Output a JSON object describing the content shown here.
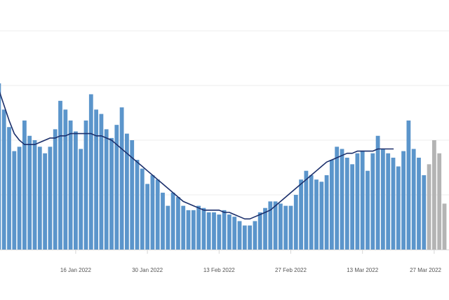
{
  "chart_data": {
    "type": "bar",
    "x_tick_labels": [
      "16 Jan 2022",
      "30 Jan 2022",
      "13 Feb 2022",
      "27 Feb 2022",
      "13 Mar 2022",
      "27 Mar 2022"
    ],
    "x_tick_positions": [
      15,
      29,
      43,
      57,
      71,
      85
    ],
    "ylim": [
      0,
      100
    ],
    "grid": true,
    "values": [
      76,
      64,
      56,
      45,
      47,
      59,
      52,
      50,
      47,
      44,
      47,
      55,
      68,
      64,
      59,
      54,
      46,
      59,
      71,
      64,
      62,
      55,
      51,
      57,
      65,
      53,
      50,
      41,
      37,
      30,
      34,
      32,
      26,
      20,
      26,
      24,
      20,
      18,
      18,
      20,
      19,
      17,
      17,
      16,
      18,
      16,
      15,
      13,
      11,
      11,
      13,
      17,
      19,
      22,
      22,
      21,
      20,
      20,
      25,
      32,
      36,
      34,
      32,
      31,
      34,
      41,
      47,
      46,
      42,
      39,
      44,
      45,
      36,
      44,
      52,
      46,
      44,
      42,
      38,
      45,
      59,
      46,
      42,
      34
    ],
    "rolling_average": [
      73,
      66,
      59,
      53,
      50,
      48,
      48,
      48,
      49,
      50,
      51,
      51,
      52,
      52,
      53,
      53,
      53,
      53,
      53,
      52,
      52,
      51,
      50,
      48,
      46,
      44,
      42,
      40,
      38,
      36,
      34,
      32,
      30,
      28,
      26,
      24,
      22,
      21,
      20,
      19,
      18,
      18,
      18,
      18,
      17,
      17,
      16,
      15,
      14,
      14,
      15,
      16,
      17,
      18,
      20,
      22,
      24,
      26,
      28,
      30,
      32,
      34,
      36,
      38,
      40,
      41,
      42,
      43,
      44,
      44,
      45,
      45,
      45,
      45,
      46,
      46,
      46,
      46
    ],
    "incomplete_values": [
      39,
      50,
      44,
      21
    ],
    "colors": {
      "bar": "#5b95cb",
      "incomplete_bar": "#b4b4b4",
      "line": "#1b2f6b",
      "grid": "#ececec",
      "axis": "#d6d6d6",
      "tick_label": "#555555"
    }
  }
}
